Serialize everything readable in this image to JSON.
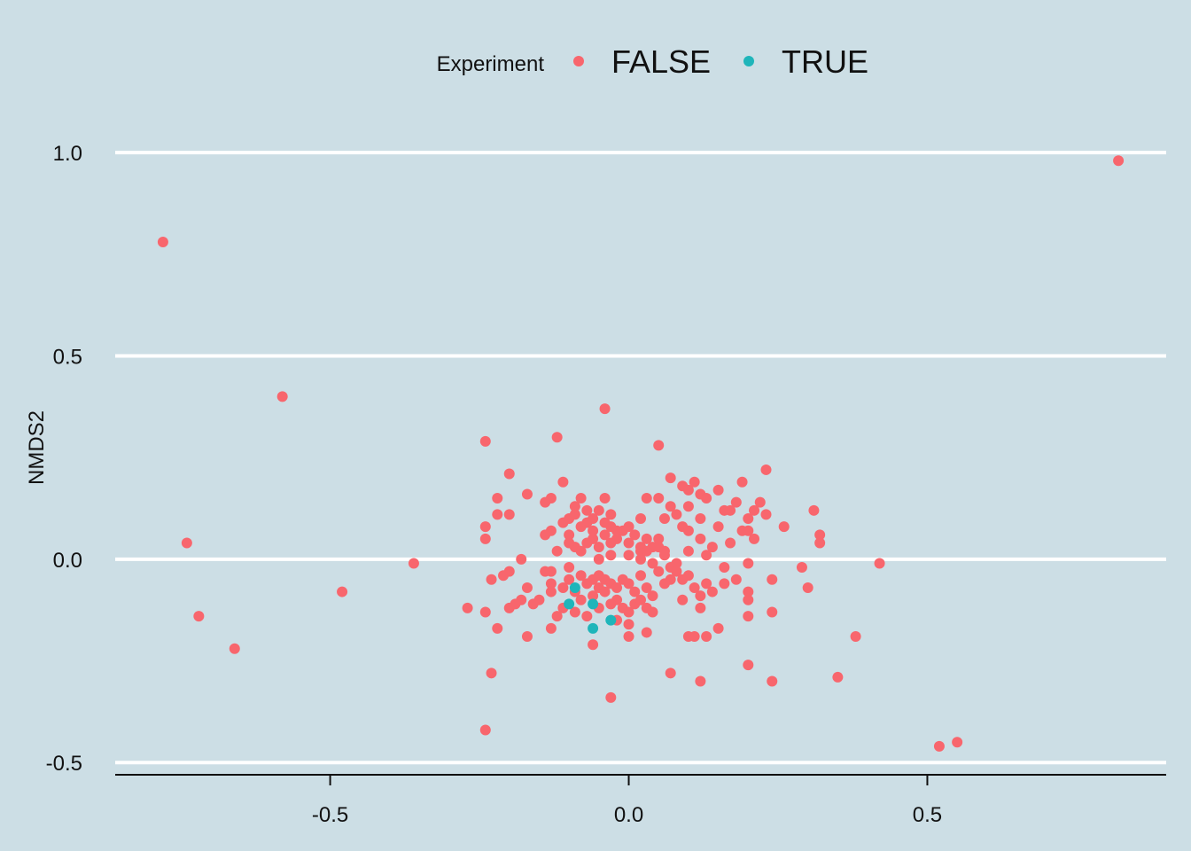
{
  "chart_data": {
    "type": "scatter",
    "title": "",
    "xlabel": "",
    "ylabel": "NMDS2",
    "xlim": [
      -0.86,
      0.9
    ],
    "ylim": [
      -0.53,
      1.07
    ],
    "x_ticks": [
      -0.5,
      0.0,
      0.5
    ],
    "x_tick_labels": [
      "-0.5",
      "0.0",
      "0.5"
    ],
    "y_ticks": [
      -0.5,
      0.0,
      0.5,
      1.0
    ],
    "y_tick_labels": [
      "-0.5",
      "0.0",
      "0.5",
      "1.0"
    ],
    "grid": "horizontal",
    "background_color": "#CCDEE5",
    "grid_color": "#FFFFFF",
    "legend": {
      "title": "Experiment",
      "position": "top",
      "entries": [
        {
          "label": "FALSE",
          "color": "#F8666D"
        },
        {
          "label": "TRUE",
          "color": "#1FB5BA"
        }
      ]
    },
    "series": [
      {
        "name": "FALSE",
        "color": "#F8666D",
        "points": [
          [
            0.82,
            0.98
          ],
          [
            -0.78,
            0.78
          ],
          [
            -0.58,
            0.4
          ],
          [
            -0.74,
            0.04
          ],
          [
            -0.72,
            -0.14
          ],
          [
            -0.66,
            -0.22
          ],
          [
            -0.48,
            -0.08
          ],
          [
            -0.36,
            -0.01
          ],
          [
            0.42,
            -0.01
          ],
          [
            0.38,
            -0.19
          ],
          [
            0.35,
            -0.29
          ],
          [
            0.52,
            -0.46
          ],
          [
            0.55,
            -0.45
          ],
          [
            -0.24,
            -0.42
          ],
          [
            -0.23,
            -0.28
          ],
          [
            -0.04,
            0.37
          ],
          [
            -0.24,
            0.29
          ],
          [
            -0.12,
            0.3
          ],
          [
            0.05,
            0.28
          ],
          [
            0.23,
            0.22
          ],
          [
            -0.2,
            0.21
          ],
          [
            0.07,
            0.2
          ],
          [
            -0.11,
            0.19
          ],
          [
            0.11,
            0.19
          ],
          [
            0.19,
            0.19
          ],
          [
            0.09,
            0.18
          ],
          [
            0.1,
            0.17
          ],
          [
            0.15,
            0.17
          ],
          [
            -0.17,
            0.16
          ],
          [
            0.12,
            0.16
          ],
          [
            -0.22,
            0.15
          ],
          [
            -0.13,
            0.15
          ],
          [
            -0.08,
            0.15
          ],
          [
            -0.04,
            0.15
          ],
          [
            0.03,
            0.15
          ],
          [
            0.05,
            0.15
          ],
          [
            0.13,
            0.15
          ],
          [
            -0.14,
            0.14
          ],
          [
            -0.09,
            0.13
          ],
          [
            0.1,
            0.13
          ],
          [
            0.18,
            0.14
          ],
          [
            0.22,
            0.14
          ],
          [
            0.07,
            0.13
          ],
          [
            0.16,
            0.12
          ],
          [
            0.21,
            0.12
          ],
          [
            -0.2,
            0.11
          ],
          [
            -0.22,
            0.11
          ],
          [
            0.08,
            0.11
          ],
          [
            0.17,
            0.12
          ],
          [
            0.23,
            0.11
          ],
          [
            0.31,
            0.12
          ],
          [
            -0.1,
            0.1
          ],
          [
            0.06,
            0.1
          ],
          [
            0.12,
            0.1
          ],
          [
            0.2,
            0.1
          ],
          [
            -0.24,
            0.08
          ],
          [
            0.09,
            0.08
          ],
          [
            0.15,
            0.08
          ],
          [
            0.26,
            0.08
          ],
          [
            -0.13,
            0.07
          ],
          [
            0.1,
            0.07
          ],
          [
            0.19,
            0.07
          ],
          [
            0.2,
            0.07
          ],
          [
            0.32,
            0.06
          ],
          [
            -0.14,
            0.06
          ],
          [
            -0.24,
            0.05
          ],
          [
            0.12,
            0.05
          ],
          [
            0.17,
            0.04
          ],
          [
            0.21,
            0.05
          ],
          [
            0.32,
            0.04
          ],
          [
            0.02,
            0.02
          ],
          [
            0.14,
            0.03
          ],
          [
            0.06,
            0.02
          ],
          [
            0.1,
            0.02
          ],
          [
            -0.18,
            0.0
          ],
          [
            0.13,
            0.01
          ],
          [
            0.08,
            -0.01
          ],
          [
            0.2,
            -0.01
          ],
          [
            0.29,
            -0.02
          ],
          [
            0.16,
            -0.02
          ],
          [
            -0.13,
            -0.03
          ],
          [
            0.1,
            -0.04
          ],
          [
            0.07,
            -0.05
          ],
          [
            0.18,
            -0.05
          ],
          [
            0.13,
            -0.06
          ],
          [
            0.24,
            -0.05
          ],
          [
            -0.23,
            -0.05
          ],
          [
            -0.17,
            -0.07
          ],
          [
            0.3,
            -0.07
          ],
          [
            0.2,
            -0.08
          ],
          [
            -0.13,
            -0.08
          ],
          [
            0.2,
            -0.1
          ],
          [
            0.09,
            -0.1
          ],
          [
            -0.2,
            -0.12
          ],
          [
            -0.27,
            -0.12
          ],
          [
            -0.24,
            -0.13
          ],
          [
            0.12,
            -0.12
          ],
          [
            0.24,
            -0.13
          ],
          [
            0.2,
            -0.14
          ],
          [
            -0.12,
            -0.14
          ],
          [
            0.04,
            -0.13
          ],
          [
            -0.22,
            -0.17
          ],
          [
            -0.13,
            -0.17
          ],
          [
            0.15,
            -0.17
          ],
          [
            0.03,
            -0.18
          ],
          [
            0.11,
            -0.19
          ],
          [
            0.13,
            -0.19
          ],
          [
            -0.17,
            -0.19
          ],
          [
            0.0,
            -0.19
          ],
          [
            0.1,
            -0.19
          ],
          [
            -0.06,
            -0.21
          ],
          [
            0.2,
            -0.26
          ],
          [
            0.07,
            -0.28
          ],
          [
            0.12,
            -0.3
          ],
          [
            0.24,
            -0.3
          ],
          [
            -0.03,
            -0.34
          ],
          [
            -0.18,
            -0.1
          ],
          [
            -0.15,
            -0.1
          ],
          [
            -0.16,
            -0.11
          ],
          [
            -0.19,
            -0.11
          ],
          [
            -0.21,
            -0.04
          ],
          [
            -0.2,
            -0.03
          ],
          [
            -0.14,
            -0.03
          ],
          [
            -0.1,
            -0.02
          ],
          [
            -0.08,
            -0.04
          ],
          [
            -0.07,
            -0.06
          ],
          [
            -0.06,
            -0.05
          ],
          [
            -0.05,
            -0.04
          ],
          [
            -0.04,
            -0.05
          ],
          [
            -0.03,
            -0.06
          ],
          [
            -0.02,
            -0.07
          ],
          [
            -0.01,
            -0.05
          ],
          [
            0.0,
            -0.06
          ],
          [
            0.01,
            -0.08
          ],
          [
            0.02,
            -0.04
          ],
          [
            0.03,
            -0.07
          ],
          [
            0.04,
            -0.09
          ],
          [
            0.05,
            -0.03
          ],
          [
            0.06,
            -0.06
          ],
          [
            -0.11,
            -0.07
          ],
          [
            -0.09,
            -0.08
          ],
          [
            -0.08,
            -0.1
          ],
          [
            -0.06,
            -0.09
          ],
          [
            -0.05,
            -0.07
          ],
          [
            -0.04,
            -0.08
          ],
          [
            -0.02,
            -0.1
          ],
          [
            -0.01,
            -0.12
          ],
          [
            0.01,
            -0.11
          ],
          [
            0.02,
            -0.1
          ],
          [
            0.03,
            -0.12
          ],
          [
            -0.11,
            -0.12
          ],
          [
            -0.09,
            -0.13
          ],
          [
            -0.07,
            -0.14
          ],
          [
            -0.05,
            -0.12
          ],
          [
            -0.03,
            -0.11
          ],
          [
            0.0,
            -0.13
          ],
          [
            0.0,
            -0.16
          ],
          [
            -0.02,
            -0.15
          ],
          [
            -0.09,
            0.03
          ],
          [
            -0.07,
            0.04
          ],
          [
            -0.06,
            0.05
          ],
          [
            -0.05,
            0.03
          ],
          [
            -0.04,
            0.06
          ],
          [
            -0.03,
            0.04
          ],
          [
            -0.02,
            0.05
          ],
          [
            -0.01,
            0.07
          ],
          [
            0.0,
            0.04
          ],
          [
            0.01,
            0.06
          ],
          [
            0.02,
            0.03
          ],
          [
            0.03,
            0.05
          ],
          [
            0.04,
            0.03
          ],
          [
            0.05,
            0.05
          ],
          [
            -0.1,
            0.06
          ],
          [
            -0.08,
            0.08
          ],
          [
            -0.07,
            0.09
          ],
          [
            -0.06,
            0.07
          ],
          [
            -0.04,
            0.09
          ],
          [
            -0.03,
            0.08
          ],
          [
            -0.02,
            0.07
          ],
          [
            0.0,
            0.08
          ],
          [
            -0.11,
            0.09
          ],
          [
            -0.09,
            0.11
          ],
          [
            -0.07,
            0.12
          ],
          [
            -0.06,
            0.1
          ],
          [
            -0.05,
            0.12
          ],
          [
            -0.03,
            0.11
          ],
          [
            0.02,
            0.1
          ],
          [
            -0.12,
            0.02
          ],
          [
            -0.1,
            0.04
          ],
          [
            -0.08,
            0.02
          ],
          [
            -0.05,
            0.0
          ],
          [
            -0.03,
            0.01
          ],
          [
            0.0,
            0.01
          ],
          [
            0.02,
            0.0
          ],
          [
            0.04,
            -0.01
          ],
          [
            0.06,
            0.01
          ],
          [
            0.05,
            0.03
          ],
          [
            0.03,
            0.02
          ],
          [
            -0.13,
            -0.06
          ],
          [
            -0.1,
            -0.05
          ],
          [
            0.07,
            -0.02
          ],
          [
            0.08,
            -0.03
          ],
          [
            0.09,
            -0.05
          ],
          [
            0.11,
            -0.07
          ],
          [
            0.12,
            -0.09
          ],
          [
            0.14,
            -0.08
          ],
          [
            0.16,
            -0.06
          ]
        ]
      },
      {
        "name": "TRUE",
        "color": "#1FB5BA",
        "points": [
          [
            -0.09,
            -0.07
          ],
          [
            -0.1,
            -0.11
          ],
          [
            -0.06,
            -0.11
          ],
          [
            -0.06,
            -0.17
          ],
          [
            -0.03,
            -0.15
          ]
        ]
      }
    ]
  }
}
